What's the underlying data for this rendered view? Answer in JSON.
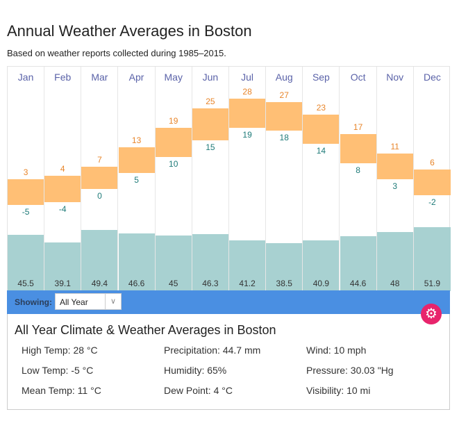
{
  "title": "Annual Weather Averages in Boston",
  "subtitle": "Based on weather reports collected during 1985–2015.",
  "chart_data": {
    "type": "bar",
    "categories": [
      "Jan",
      "Feb",
      "Mar",
      "Apr",
      "May",
      "Jun",
      "Jul",
      "Aug",
      "Sep",
      "Oct",
      "Nov",
      "Dec"
    ],
    "series": [
      {
        "name": "High Temp (°C)",
        "values": [
          3,
          4,
          7,
          13,
          19,
          25,
          28,
          27,
          23,
          17,
          11,
          6
        ]
      },
      {
        "name": "Low Temp (°C)",
        "values": [
          -5,
          -4,
          0,
          5,
          10,
          15,
          19,
          18,
          14,
          8,
          3,
          -2
        ]
      },
      {
        "name": "Precipitation (mm)",
        "values": [
          45.5,
          39.1,
          49.4,
          46.6,
          45,
          46.3,
          41.2,
          38.5,
          40.9,
          44.6,
          48,
          51.9
        ]
      }
    ],
    "colors": {
      "temp": "#ffbf75",
      "high": "#e8852a",
      "low": "#1d7a78",
      "precip": "#a8d1d1",
      "month": "#5a62a8"
    }
  },
  "controls": {
    "showing_label": "Showing:",
    "period": "All Year",
    "dropdown_icon": "chevron-down-icon",
    "settings_icon": "gear-icon",
    "bar_color": "#4a8fe2",
    "gear_color": "#e8246c"
  },
  "summary": {
    "title": "All Year Climate & Weather Averages in Boston",
    "items": [
      "High Temp: 28 °C",
      "Precipitation: 44.7 mm",
      "Wind: 10 mph",
      "Low Temp: -5 °C",
      "Humidity: 65%",
      "Pressure: 30.03 \"Hg",
      "Mean Temp: 11 °C",
      "Dew Point: 4 °C",
      "Visibility: 10 mi"
    ]
  }
}
